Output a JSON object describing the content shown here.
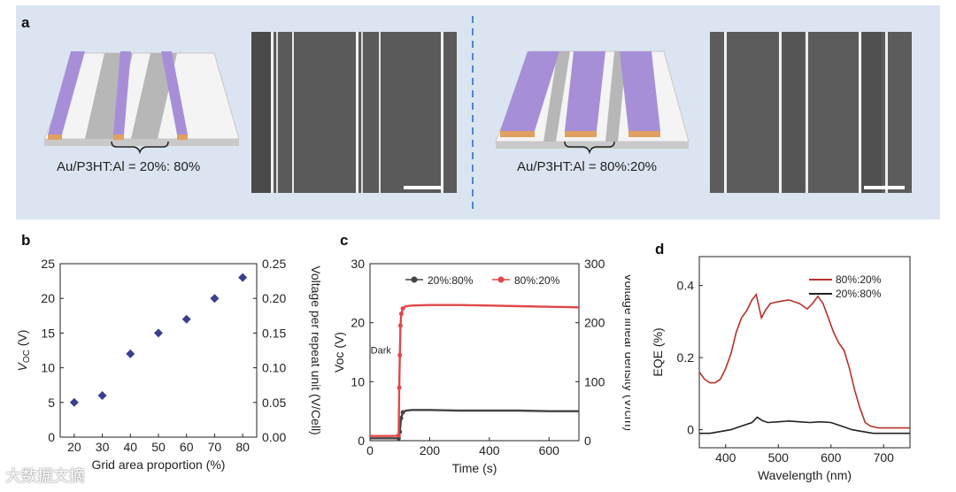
{
  "panel_a": {
    "letter": "a",
    "left_caption": "Au/P3HT:Al = 20%: 80%",
    "right_caption": "Au/P3HT:Al = 80%:20%",
    "colors": {
      "background": "#dbe5f1",
      "purple": "#a78fd8",
      "gold": "#e0a060",
      "divider": "#4a86d8"
    }
  },
  "watermark": "大数据文摘",
  "chart_data": [
    {
      "panel": "b",
      "type": "scatter",
      "x": [
        20,
        30,
        40,
        50,
        60,
        70,
        80
      ],
      "y": [
        5,
        6,
        12,
        15,
        17,
        20,
        23
      ],
      "xlabel": "Grid area proportion (%)",
      "ylabel": "V",
      "ylabel_sub": "OC",
      "ylabel_unit": " (V)",
      "y2label": "Voltage per repeat unit (V/Cell)",
      "xlim": [
        15,
        85
      ],
      "ylim": [
        0,
        25
      ],
      "y2lim": [
        0,
        0.25
      ],
      "xticks": [
        "20",
        "30",
        "40",
        "50",
        "60",
        "70",
        "80"
      ],
      "yticks": [
        "0",
        "5",
        "10",
        "15",
        "20",
        "25"
      ],
      "y2ticks": [
        "0.00",
        "0.05",
        "0.10",
        "0.15",
        "0.20",
        "0.25"
      ],
      "marker_color": "#3b3f8f"
    },
    {
      "panel": "c",
      "type": "line",
      "xlabel": "Time (s)",
      "ylabel": "Voc (V)",
      "y2label": "Voltage linear density (V/cm)",
      "xlim": [
        0,
        700
      ],
      "ylim": [
        0,
        30
      ],
      "y2lim": [
        0,
        300
      ],
      "xticks": [
        "0",
        "200",
        "400",
        "600"
      ],
      "yticks": [
        "0",
        "10",
        "20",
        "30"
      ],
      "y2ticks": [
        "0",
        "100",
        "200",
        "300"
      ],
      "annotation": "Dark",
      "series": [
        {
          "name": "20%:80%",
          "color": "#444444",
          "x": [
            0,
            40,
            80,
            96,
            100,
            104,
            110,
            120,
            140,
            200,
            300,
            400,
            500,
            600,
            700
          ],
          "y": [
            0.4,
            0.4,
            0.4,
            0.4,
            1.5,
            3.8,
            4.8,
            5.1,
            5.2,
            5.2,
            5.1,
            5.1,
            5.1,
            5.0,
            5.0
          ]
        },
        {
          "name": "80%:20%",
          "color": "#e04848",
          "x": [
            0,
            40,
            80,
            96,
            98,
            100,
            102,
            105,
            110,
            120,
            140,
            200,
            300,
            400,
            500,
            600,
            700
          ],
          "y": [
            0.8,
            0.8,
            0.8,
            0.9,
            9,
            14.5,
            19.5,
            21.5,
            22.4,
            22.8,
            22.9,
            23.0,
            23.0,
            22.9,
            22.8,
            22.7,
            22.6
          ]
        }
      ]
    },
    {
      "panel": "d",
      "type": "line",
      "xlabel": "Wavelength (nm)",
      "ylabel": "EQE (%)",
      "xlim": [
        350,
        750
      ],
      "ylim": [
        -0.05,
        0.48
      ],
      "xticks": [
        "400",
        "500",
        "600",
        "700"
      ],
      "yticks": [
        "0",
        "0.2",
        "0.4"
      ],
      "series": [
        {
          "name": "80%:20%",
          "color": "#b8302a",
          "x": [
            350,
            360,
            370,
            380,
            390,
            400,
            410,
            420,
            430,
            440,
            450,
            458,
            462,
            468,
            475,
            485,
            500,
            520,
            540,
            555,
            565,
            575,
            585,
            595,
            605,
            615,
            625,
            635,
            645,
            655,
            665,
            675,
            690,
            710,
            730,
            750
          ],
          "y": [
            0.16,
            0.14,
            0.13,
            0.13,
            0.14,
            0.17,
            0.21,
            0.27,
            0.31,
            0.33,
            0.36,
            0.375,
            0.35,
            0.31,
            0.33,
            0.35,
            0.355,
            0.36,
            0.35,
            0.335,
            0.35,
            0.37,
            0.35,
            0.31,
            0.27,
            0.24,
            0.22,
            0.17,
            0.11,
            0.06,
            0.02,
            0.01,
            0.005,
            0.005,
            0.005,
            0.005
          ]
        },
        {
          "name": "20%:80%",
          "color": "#222222",
          "x": [
            350,
            370,
            390,
            410,
            430,
            450,
            460,
            470,
            480,
            500,
            520,
            540,
            560,
            580,
            600,
            620,
            640,
            660,
            680,
            700,
            720,
            750
          ],
          "y": [
            -0.01,
            -0.01,
            -0.005,
            0.0,
            0.01,
            0.02,
            0.035,
            0.025,
            0.02,
            0.022,
            0.024,
            0.022,
            0.02,
            0.022,
            0.02,
            0.01,
            0.0,
            -0.005,
            -0.01,
            -0.01,
            -0.01,
            -0.01
          ]
        }
      ]
    }
  ]
}
